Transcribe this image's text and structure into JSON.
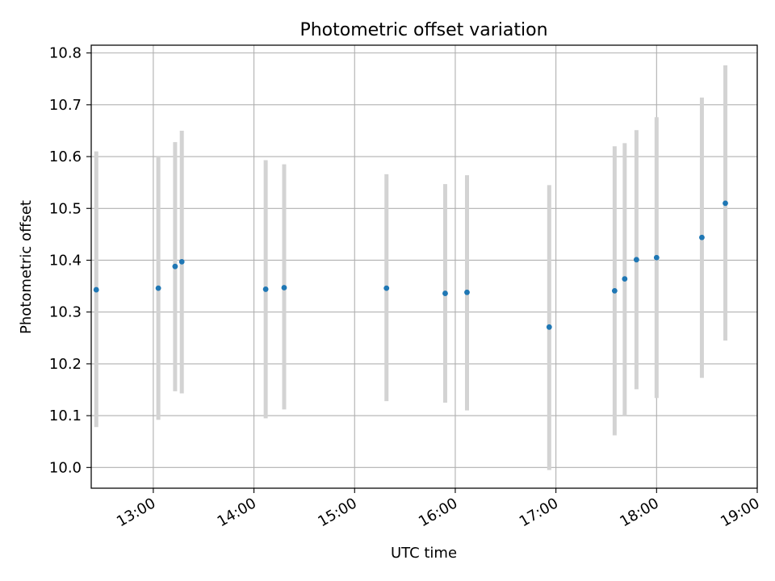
{
  "chart_data": {
    "type": "scatter",
    "title": "Photometric offset variation",
    "xlabel": "UTC time",
    "ylabel": "Photometric offset",
    "x_unit": "hours UTC",
    "xlim": [
      "12:23",
      "19:00"
    ],
    "ylim": [
      9.96,
      10.815
    ],
    "x_ticks": [
      "13:00",
      "14:00",
      "15:00",
      "16:00",
      "17:00",
      "18:00",
      "19:00"
    ],
    "y_ticks": [
      "10.0",
      "10.1",
      "10.2",
      "10.3",
      "10.4",
      "10.5",
      "10.6",
      "10.7",
      "10.8"
    ],
    "grid": true,
    "marker_color": "#1f77b4",
    "errorbar_color": "#d3d3d3",
    "points": [
      {
        "x": "12:26",
        "y": 10.343,
        "err_low": 10.078,
        "err_high": 10.61
      },
      {
        "x": "13:03",
        "y": 10.346,
        "err_low": 10.092,
        "err_high": 10.6
      },
      {
        "x": "13:13",
        "y": 10.388,
        "err_low": 10.147,
        "err_high": 10.628
      },
      {
        "x": "13:17",
        "y": 10.397,
        "err_low": 10.143,
        "err_high": 10.65
      },
      {
        "x": "14:07",
        "y": 10.344,
        "err_low": 10.095,
        "err_high": 10.593
      },
      {
        "x": "14:18",
        "y": 10.347,
        "err_low": 10.112,
        "err_high": 10.585
      },
      {
        "x": "15:19",
        "y": 10.346,
        "err_low": 10.128,
        "err_high": 10.566
      },
      {
        "x": "15:54",
        "y": 10.336,
        "err_low": 10.125,
        "err_high": 10.547
      },
      {
        "x": "16:07",
        "y": 10.338,
        "err_low": 10.11,
        "err_high": 10.564
      },
      {
        "x": "16:56",
        "y": 10.271,
        "err_low": 9.995,
        "err_high": 10.545
      },
      {
        "x": "17:35",
        "y": 10.341,
        "err_low": 10.062,
        "err_high": 10.62
      },
      {
        "x": "17:41",
        "y": 10.364,
        "err_low": 10.1,
        "err_high": 10.626
      },
      {
        "x": "17:48",
        "y": 10.401,
        "err_low": 10.151,
        "err_high": 10.651
      },
      {
        "x": "18:00",
        "y": 10.405,
        "err_low": 10.134,
        "err_high": 10.676
      },
      {
        "x": "18:27",
        "y": 10.444,
        "err_low": 10.173,
        "err_high": 10.714
      },
      {
        "x": "18:41",
        "y": 10.51,
        "err_low": 10.245,
        "err_high": 10.776
      }
    ]
  }
}
